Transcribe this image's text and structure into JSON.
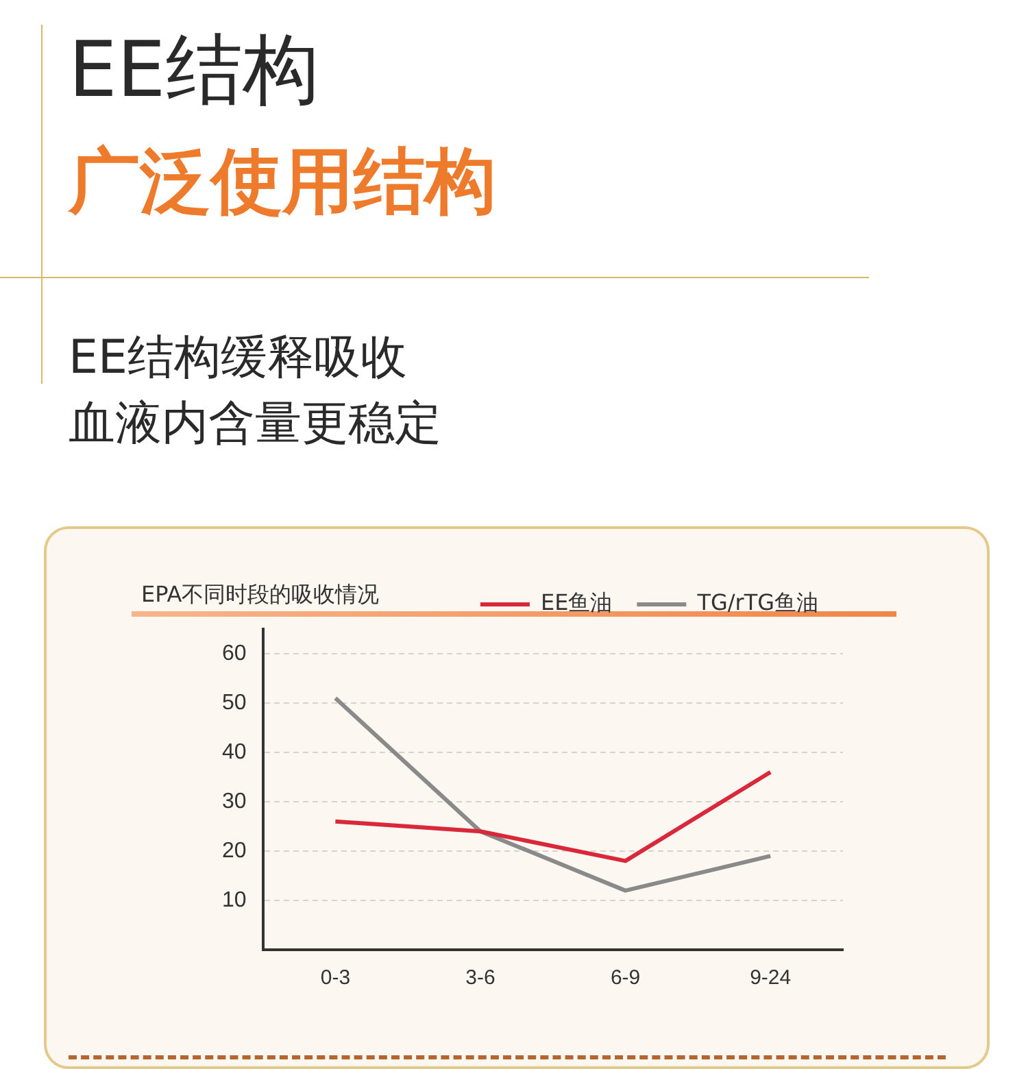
{
  "chart_data": {
    "type": "line",
    "title": "EE结构",
    "subtitle": "广泛使用结构",
    "annotations": [
      "EE结构缓释吸收",
      "血液内含量更稳定",
      "EPA不同时段的吸收情况"
    ],
    "categories": [
      "0-3",
      "3-6",
      "6-9",
      "9-24"
    ],
    "series": [
      {
        "name": "EE鱼油",
        "color": "#d8283a",
        "values": [
          26,
          24,
          18,
          36
        ]
      },
      {
        "name": "TG/rTG鱼油",
        "color": "#8a8a8a",
        "values": [
          51,
          24,
          12,
          19
        ]
      }
    ],
    "ylim": [
      0,
      65
    ],
    "yticks": [
      10,
      20,
      30,
      40,
      50,
      60
    ],
    "grid": "y",
    "legend": "top right",
    "marker": "none",
    "line_style": "solid"
  }
}
